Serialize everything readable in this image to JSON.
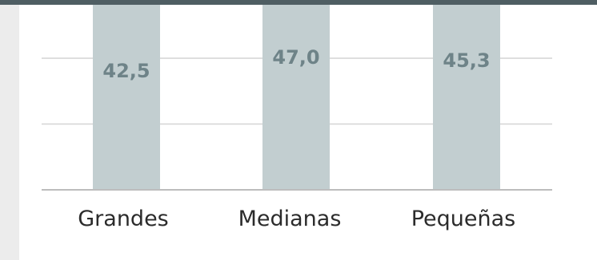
{
  "chart_data": {
    "type": "bar",
    "categories": [
      "Grandes",
      "Medianas",
      "Pequeñas"
    ],
    "values": [
      42.5,
      47.0,
      45.3
    ],
    "data_labels": [
      "42,5",
      "47,0",
      "45,3"
    ],
    "title": "",
    "xlabel": "",
    "ylabel": "",
    "ylim": [
      0,
      60
    ],
    "grid": true,
    "colors": {
      "bar": "#c2ced0",
      "label": "#6e8388",
      "grid": "#d4d4d4",
      "axis": "#bdbdbd",
      "top_bar": "#4f5e63"
    }
  }
}
